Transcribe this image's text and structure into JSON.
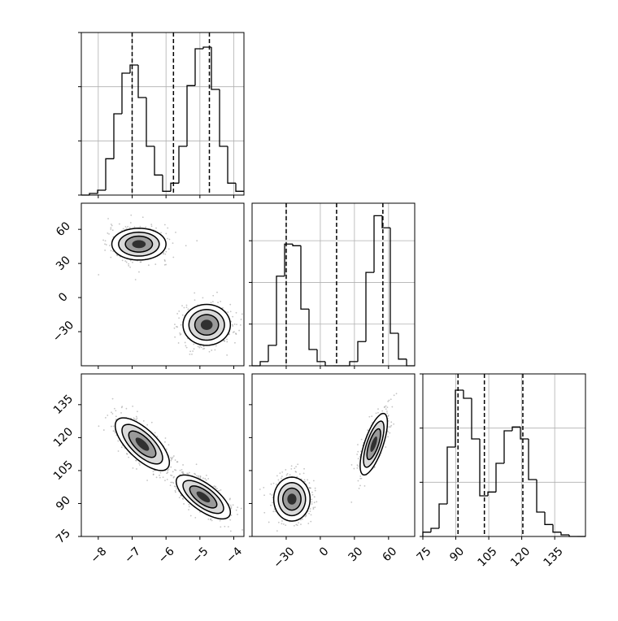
{
  "chart_data": {
    "type": "corner",
    "params": [
      {
        "xlim": [
          -8.5,
          -3.7
        ],
        "xticks": [
          {
            "value": -8,
            "label": "−8"
          },
          {
            "value": -7,
            "label": "−7"
          },
          {
            "value": -6,
            "label": "−6"
          },
          {
            "value": -5,
            "label": "−5"
          },
          {
            "value": -4,
            "label": "−4"
          }
        ]
      },
      {
        "xlim": [
          -60,
          83
        ],
        "xticks": [
          {
            "value": -30,
            "label": "−30"
          },
          0,
          30,
          60
        ]
      },
      {
        "xlim": [
          75,
          149
        ],
        "xticks": [
          75,
          90,
          105,
          120,
          135
        ]
      }
    ],
    "hists": [
      {
        "bins": [
          -8.5,
          -8.26,
          -8.02,
          -7.78,
          -7.54,
          -7.3,
          -7.06,
          -6.82,
          -6.58,
          -6.34,
          -6.1,
          -5.86,
          -5.62,
          -5.38,
          -5.14,
          -4.9,
          -4.66,
          -4.42,
          -4.18,
          -3.94,
          -3.7
        ],
        "counts": [
          0,
          3,
          9,
          67,
          150,
          225,
          240,
          180,
          90,
          37,
          7,
          22,
          90,
          202,
          270,
          273,
          195,
          90,
          22,
          7
        ],
        "ylim": [
          0,
          300
        ],
        "yticks": [
          0,
          100,
          200,
          300
        ],
        "quantiles": [
          -7.0,
          -5.78,
          -4.72
        ]
      },
      {
        "bins": [
          -60,
          -52.85,
          -45.7,
          -38.55,
          -31.4,
          -24.25,
          -17.1,
          -9.95,
          -2.8,
          4.35,
          11.5,
          18.65,
          25.8,
          32.95,
          40.1,
          47.25,
          54.4,
          61.55,
          68.7,
          75.85,
          83
        ],
        "counts": [
          0,
          10,
          49,
          215,
          292,
          288,
          136,
          39,
          10,
          0,
          0,
          0,
          10,
          58,
          224,
          360,
          331,
          78,
          16,
          0
        ],
        "ylim": [
          0,
          390
        ],
        "yticks": [
          0,
          100,
          200,
          300
        ],
        "quantiles": [
          -30,
          14.3,
          55
        ]
      },
      {
        "bins": [
          75,
          78.7,
          82.4,
          86.1,
          89.8,
          93.5,
          97.2,
          100.9,
          104.6,
          108.3,
          112,
          115.7,
          119.4,
          123.1,
          126.8,
          130.5,
          134.2,
          137.9,
          141.6,
          145.3,
          149
        ],
        "counts": [
          8,
          15,
          60,
          165,
          270,
          255,
          180,
          75,
          82,
          135,
          195,
          202,
          180,
          105,
          45,
          22,
          8,
          3,
          0,
          0
        ],
        "ylim": [
          0,
          300
        ],
        "yticks": [
          0,
          100,
          200,
          300
        ],
        "quantiles": [
          91,
          103,
          120.5
        ]
      }
    ],
    "pairs": [
      {
        "clusters": [
          {
            "x": -6.8,
            "y": 47,
            "sx": 0.4,
            "sy": 7,
            "rho": 0
          },
          {
            "x": -4.8,
            "y": -24,
            "sx": 0.35,
            "sy": 9,
            "rho": 0
          }
        ]
      },
      {
        "clusters": [
          {
            "x": -6.7,
            "y": 117,
            "sx": 0.4,
            "sy": 6,
            "rho": -0.7
          },
          {
            "x": -4.9,
            "y": 93,
            "sx": 0.4,
            "sy": 5,
            "rho": -0.7
          }
        ]
      },
      {
        "clusters": [
          {
            "x": -25,
            "y": 92,
            "sx": 8,
            "sy": 5,
            "rho": 0
          },
          {
            "x": 47,
            "y": 117,
            "sx": 6,
            "sy": 7,
            "rho": 0.7
          }
        ]
      }
    ]
  }
}
